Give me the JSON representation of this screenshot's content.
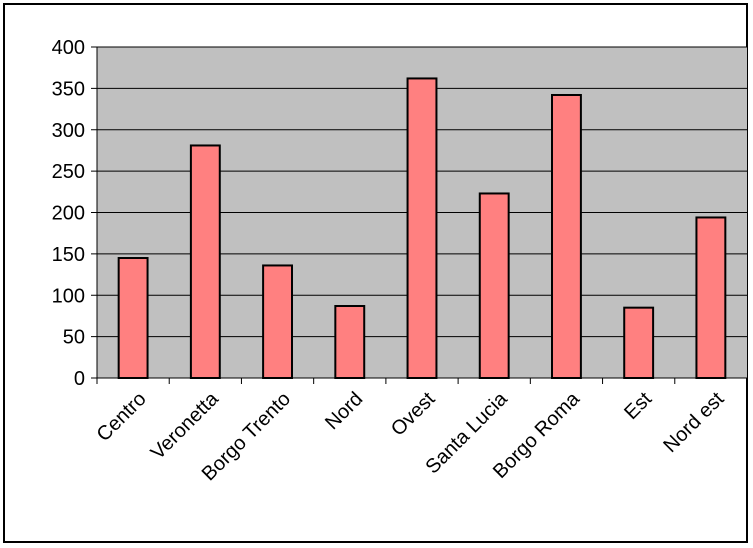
{
  "chart_data": {
    "type": "bar",
    "categories": [
      "Centro",
      "Veronetta",
      "Borgo Trento",
      "Nord",
      "Ovest",
      "Santa Lucia",
      "Borgo Roma",
      "Est",
      "Nord est"
    ],
    "values": [
      145,
      281,
      136,
      87,
      362,
      223,
      342,
      85,
      194
    ],
    "title": "",
    "xlabel": "",
    "ylabel": "",
    "ylim": [
      0,
      400
    ],
    "yticks": [
      0,
      50,
      100,
      150,
      200,
      250,
      300,
      350,
      400
    ],
    "grid": true,
    "legend": "none",
    "colors": {
      "bar_fill": "#ff8080",
      "bar_stroke": "#000000",
      "plot_background": "#c0c0c0",
      "gridline": "#000000",
      "frame": "#000000"
    }
  }
}
